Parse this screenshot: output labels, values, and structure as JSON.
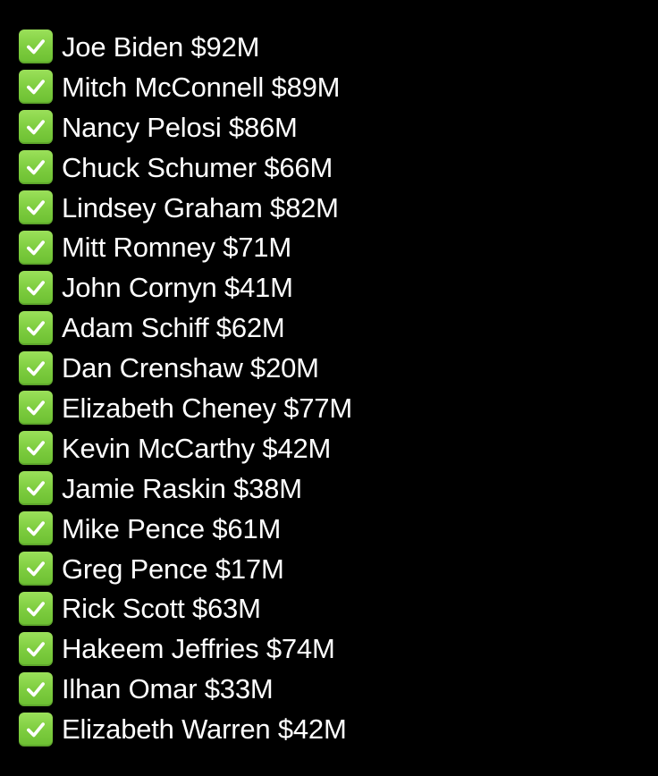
{
  "list": {
    "icon": "check-mark-button-icon",
    "icon_color": "#7ccc3e",
    "text_color": "#ffffff",
    "background_color": "#000000",
    "items": [
      {
        "label": "Joe Biden $92M"
      },
      {
        "label": "Mitch McConnell $89M"
      },
      {
        "label": "Nancy Pelosi $86M"
      },
      {
        "label": "Chuck Schumer $66M"
      },
      {
        "label": "Lindsey Graham $82M"
      },
      {
        "label": "Mitt Romney $71M"
      },
      {
        "label": "John Cornyn $41M"
      },
      {
        "label": "Adam Schiff $62M"
      },
      {
        "label": "Dan Crenshaw $20M"
      },
      {
        "label": "Elizabeth Cheney $77M"
      },
      {
        "label": "Kevin McCarthy $42M"
      },
      {
        "label": "Jamie Raskin $38M"
      },
      {
        "label": "Mike Pence $61M"
      },
      {
        "label": "Greg Pence $17M"
      },
      {
        "label": "Rick Scott $63M"
      },
      {
        "label": "Hakeem Jeffries $74M"
      },
      {
        "label": "Ilhan Omar $33M"
      },
      {
        "label": "Elizabeth Warren $42M"
      }
    ]
  }
}
